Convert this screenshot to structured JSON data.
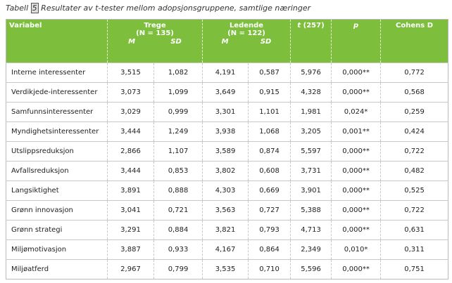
{
  "caption": {
    "label": "Tabell",
    "number": "5",
    "text": "Resultater av t-tester mellom adopsjonsgruppene, samtlige næringer"
  },
  "table": {
    "header": {
      "variable": "Variabel",
      "groups": [
        {
          "name": "Trege",
          "n": "(N = 135)",
          "sub": [
            "M",
            "SD"
          ]
        },
        {
          "name": "Ledende",
          "n": "(N = 122)",
          "sub": [
            "M",
            "SD"
          ]
        }
      ],
      "t": {
        "symbol": "t",
        "df": "(257)"
      },
      "p": "p",
      "cohens_d": "Cohens D"
    },
    "rows": [
      [
        "Interne interessenter",
        "3,515",
        "1,082",
        "4,191",
        "0,587",
        "5,976",
        "0,000**",
        "0,772"
      ],
      [
        "Verdikjede-interessenter",
        "3,073",
        "1,099",
        "3,649",
        "0,915",
        "4,328",
        "0,000**",
        "0,568"
      ],
      [
        "Samfunnsinteressenter",
        "3,029",
        "0,999",
        "3,301",
        "1,101",
        "1,981",
        "0,024*",
        "0,259"
      ],
      [
        "Myndighetsinteressenter",
        "3,444",
        "1,249",
        "3,938",
        "1,068",
        "3,205",
        "0,001**",
        "0,424"
      ],
      [
        "Utslippsreduksjon",
        "2,866",
        "1,107",
        "3,589",
        "0,874",
        "5,597",
        "0,000**",
        "0,722"
      ],
      [
        "Avfallsreduksjon",
        "3,444",
        "0,853",
        "3,802",
        "0,608",
        "3,731",
        "0,000**",
        "0,482"
      ],
      [
        "Langsiktighet",
        "3,891",
        "0,888",
        "4,303",
        "0,669",
        "3,901",
        "0,000**",
        "0,525"
      ],
      [
        "Grønn innovasjon",
        "3,041",
        "0,721",
        "3,563",
        "0,727",
        "5,388",
        "0,000**",
        "0,722"
      ],
      [
        "Grønn strategi",
        "3,291",
        "0,884",
        "3,821",
        "0,793",
        "4,713",
        "0,000**",
        "0,631"
      ],
      [
        "Miljømotivasjon",
        "3,887",
        "0,933",
        "4,167",
        "0,864",
        "2,349",
        "0,010*",
        "0,311"
      ],
      [
        "Miljøatferd",
        "2,967",
        "0,799",
        "3,535",
        "0,710",
        "5,596",
        "0,000**",
        "0,751"
      ]
    ]
  }
}
